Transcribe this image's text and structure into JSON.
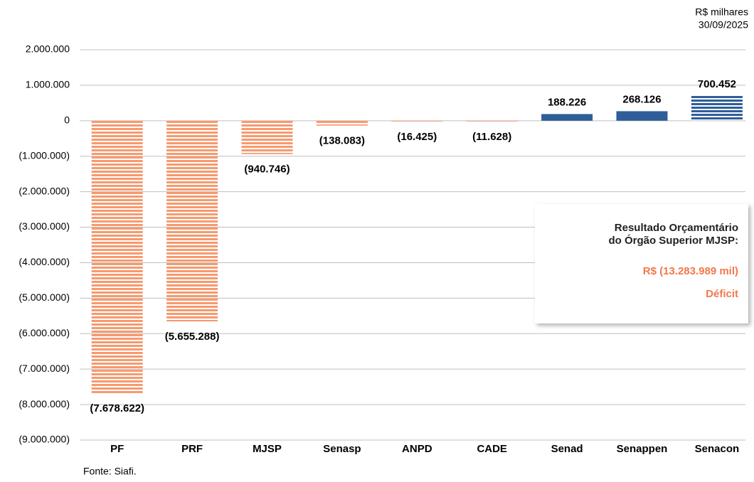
{
  "chart_data": {
    "type": "bar",
    "unit_note": "R$ milhares",
    "date": "30/09/2025",
    "categories": [
      "PF",
      "PRF",
      "MJSP",
      "Senasp",
      "ANPD",
      "CADE",
      "Senad",
      "Senappen",
      "Senacon"
    ],
    "values": [
      -7678622,
      -5655288,
      -940746,
      -138083,
      -16425,
      -11628,
      188226,
      268126,
      700452
    ],
    "value_labels": [
      "(7.678.622)",
      "(5.655.288)",
      "(940.746)",
      "(138.083)",
      "(16.425)",
      "(11.628)",
      "188.226",
      "268.126",
      "700.452"
    ],
    "colors": [
      "#f79a6e",
      "#f79a6e",
      "#f79a6e",
      "#f79a6e",
      "#f79a6e",
      "#f79a6e",
      "#2e5e9a",
      "#2e5e9a",
      "#2e5e9a"
    ],
    "label_colors": [
      "#f4774a",
      "#f4774a",
      "#f4774a",
      "#f4774a",
      "#f4774a",
      "#f4774a",
      "#2e5e9a",
      "#2e5e9a",
      "#2e5e9a"
    ],
    "bar_styles": [
      "striped",
      "striped",
      "striped",
      "striped",
      "striped",
      "striped",
      "solid",
      "solid",
      "striped"
    ],
    "ylim": [
      -9000000,
      2000000
    ],
    "yticks": [
      {
        "value": 2000000,
        "label": "2.000.000"
      },
      {
        "value": 1000000,
        "label": "1.000.000"
      },
      0,
      {
        "value": -1000000,
        "label": "(1.000.000)"
      },
      {
        "value": -2000000,
        "label": "(2.000.000)"
      },
      {
        "value": -3000000,
        "label": "(3.000.000)"
      },
      {
        "value": -4000000,
        "label": "(4.000.000)"
      },
      {
        "value": -5000000,
        "label": "(5.000.000)"
      },
      {
        "value": -6000000,
        "label": "(6.000.000)"
      },
      {
        "value": -7000000,
        "label": "(7.000.000)"
      },
      {
        "value": -8000000,
        "label": "(8.000.000)"
      },
      {
        "value": -9000000,
        "label": "(9.000.000)"
      }
    ],
    "grid": true,
    "annotation": {
      "title_lines": [
        "Resultado Orçamentário",
        "do Órgão Superior MJSP:"
      ],
      "amount": "R$ (13.283.989 mil)",
      "result": "Déficit"
    },
    "source": "Fonte: Siafi."
  }
}
